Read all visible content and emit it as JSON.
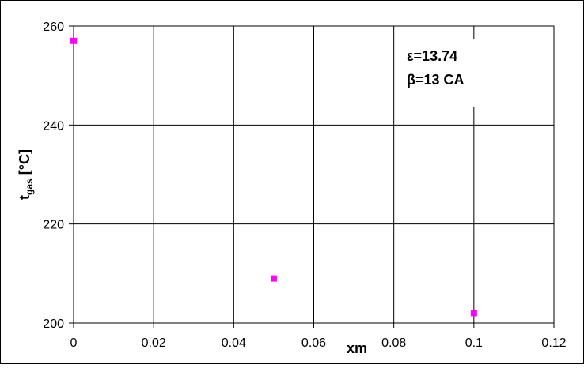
{
  "chart_data": {
    "type": "scatter",
    "xlabel": "xm",
    "ylabel": {
      "main": "t",
      "sub": "gas",
      "unit": " [°C]"
    },
    "xlim": [
      0,
      0.12
    ],
    "ylim": [
      200,
      260
    ],
    "x_ticks": [
      {
        "value": 0,
        "label": "0"
      },
      {
        "value": 0.02,
        "label": "0.02"
      },
      {
        "value": 0.04,
        "label": "0.04"
      },
      {
        "value": 0.06,
        "label": "0.06"
      },
      {
        "value": 0.08,
        "label": "0.08"
      },
      {
        "value": 0.1,
        "label": "0.1"
      },
      {
        "value": 0.12,
        "label": "0.12"
      }
    ],
    "y_ticks": [
      {
        "value": 200,
        "label": "200"
      },
      {
        "value": 220,
        "label": "220"
      },
      {
        "value": 240,
        "label": "240"
      },
      {
        "value": 260,
        "label": "260"
      }
    ],
    "grid": true,
    "series": [
      {
        "color": "#ff00ff",
        "marker": "square",
        "x": [
          0,
          0.05,
          0.1
        ],
        "y": [
          257,
          209,
          202
        ]
      }
    ],
    "annotations": [
      "ε=13.74",
      "β=13 CA"
    ]
  }
}
